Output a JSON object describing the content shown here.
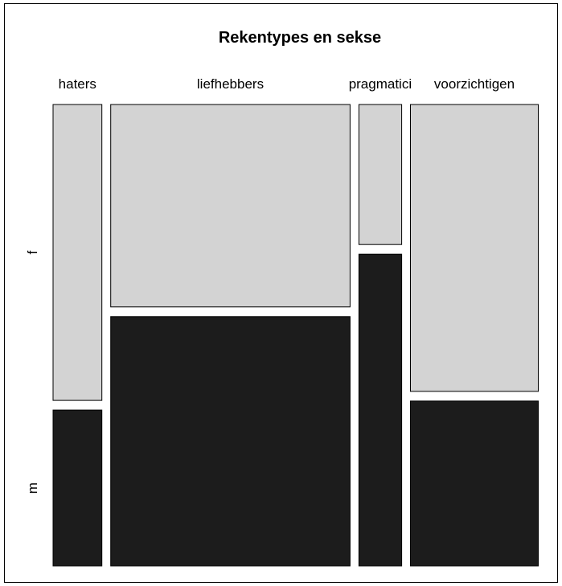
{
  "chart_data": {
    "type": "mosaic",
    "title": "Rekentypes en sekse",
    "categories": [
      "haters",
      "liefhebbers",
      "pragmatici",
      "voorzichtigen"
    ],
    "column_widths": [
      0.105,
      0.515,
      0.092,
      0.275
    ],
    "series": [
      {
        "name": "f",
        "proportions": [
          0.655,
          0.448,
          0.31,
          0.635
        ]
      },
      {
        "name": "m",
        "proportions": [
          0.345,
          0.552,
          0.69,
          0.365
        ]
      }
    ],
    "colors": {
      "f": "#d3d3d3",
      "m": "#1c1c1c"
    }
  }
}
